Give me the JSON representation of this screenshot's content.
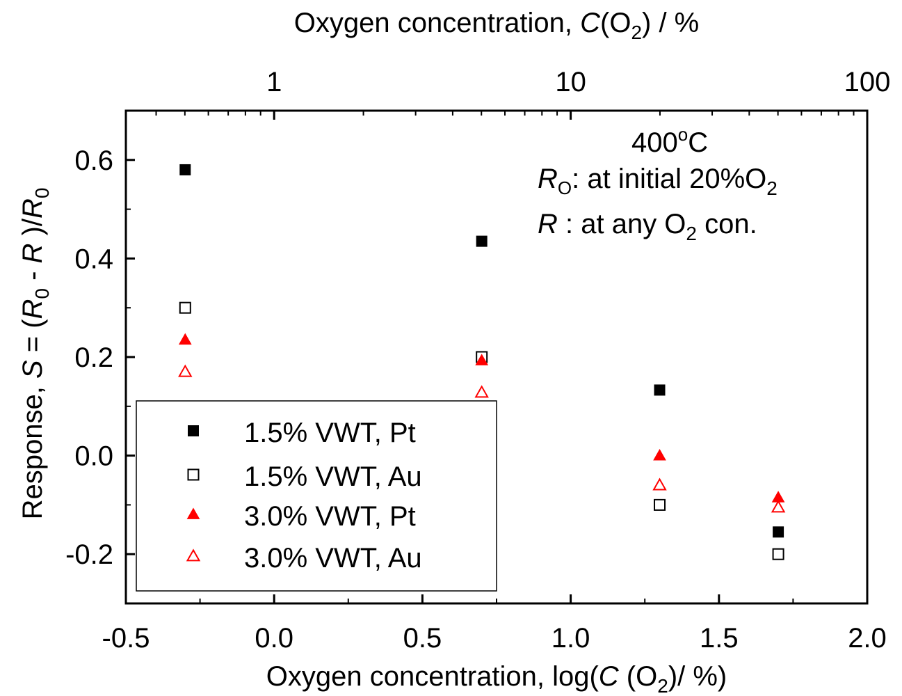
{
  "chart_data": {
    "type": "scatter",
    "title": "",
    "xlabel": {
      "prefix": "Oxygen concentration, log(",
      "italic": "C",
      "mid": " (O",
      "sub": "2",
      "suffix": ")/ %)"
    },
    "top_xlabel": {
      "prefix": "Oxygen concentration, ",
      "italic": "C",
      "mid": "(O",
      "sub": "2",
      "suffix": ") / %"
    },
    "ylabel": {
      "p1": "Response, ",
      "i1": "S",
      "p2": " = (",
      "i2": "R",
      "s2": "0",
      "p3": " - ",
      "i3": "R",
      "p4": " )/",
      "i4": "R",
      "s4": "0"
    },
    "xlim": [
      -0.5,
      2.0
    ],
    "ylim": [
      -0.3,
      0.7
    ],
    "x_ticks": [
      -0.5,
      0.0,
      0.5,
      1.0,
      1.5,
      2.0
    ],
    "x_tick_labels": [
      "-0.5",
      "0.0",
      "0.5",
      "1.0",
      "1.5",
      "2.0"
    ],
    "y_ticks": [
      -0.2,
      0.0,
      0.2,
      0.4,
      0.6
    ],
    "y_tick_labels": [
      "-0.2",
      "0.0",
      "0.2",
      "0.4",
      "0.6"
    ],
    "top_ticks": [
      {
        "value": 1,
        "label": "1"
      },
      {
        "value": 10,
        "label": "10"
      },
      {
        "value": 100,
        "label": "100"
      }
    ],
    "grid": false,
    "legend_position": "bottom-left",
    "annotation": {
      "temp_main": "400",
      "temp_degree": "o",
      "temp_unit": "C",
      "line2_italic": "R",
      "line2_sub": "O",
      "line2_text": ": at initial 20%O",
      "line2_sub2": "2",
      "line3_italic": "R",
      "line3_text1": " : at any O",
      "line3_sub": "2",
      "line3_text2": " con."
    },
    "series": [
      {
        "name": "1.5% VWT, Pt",
        "marker": "square",
        "filled": true,
        "color": "#000000",
        "x": [
          -0.3,
          0.7,
          1.3,
          1.7
        ],
        "y": [
          0.58,
          0.435,
          0.133,
          -0.155
        ]
      },
      {
        "name": "1.5% VWT, Au",
        "marker": "square",
        "filled": false,
        "color": "#000000",
        "x": [
          -0.3,
          0.7,
          1.3,
          1.7
        ],
        "y": [
          0.3,
          0.2,
          -0.1,
          -0.2
        ]
      },
      {
        "name": "3.0% VWT, Pt",
        "marker": "triangle",
        "filled": true,
        "color": "#ff0000",
        "x": [
          -0.3,
          0.7,
          1.3,
          1.7
        ],
        "y": [
          0.235,
          0.193,
          0.0,
          -0.085
        ]
      },
      {
        "name": "3.0% VWT, Au",
        "marker": "triangle",
        "filled": false,
        "color": "#ff0000",
        "x": [
          -0.3,
          0.7,
          1.3,
          1.7
        ],
        "y": [
          0.17,
          0.128,
          -0.06,
          -0.105
        ]
      }
    ]
  }
}
